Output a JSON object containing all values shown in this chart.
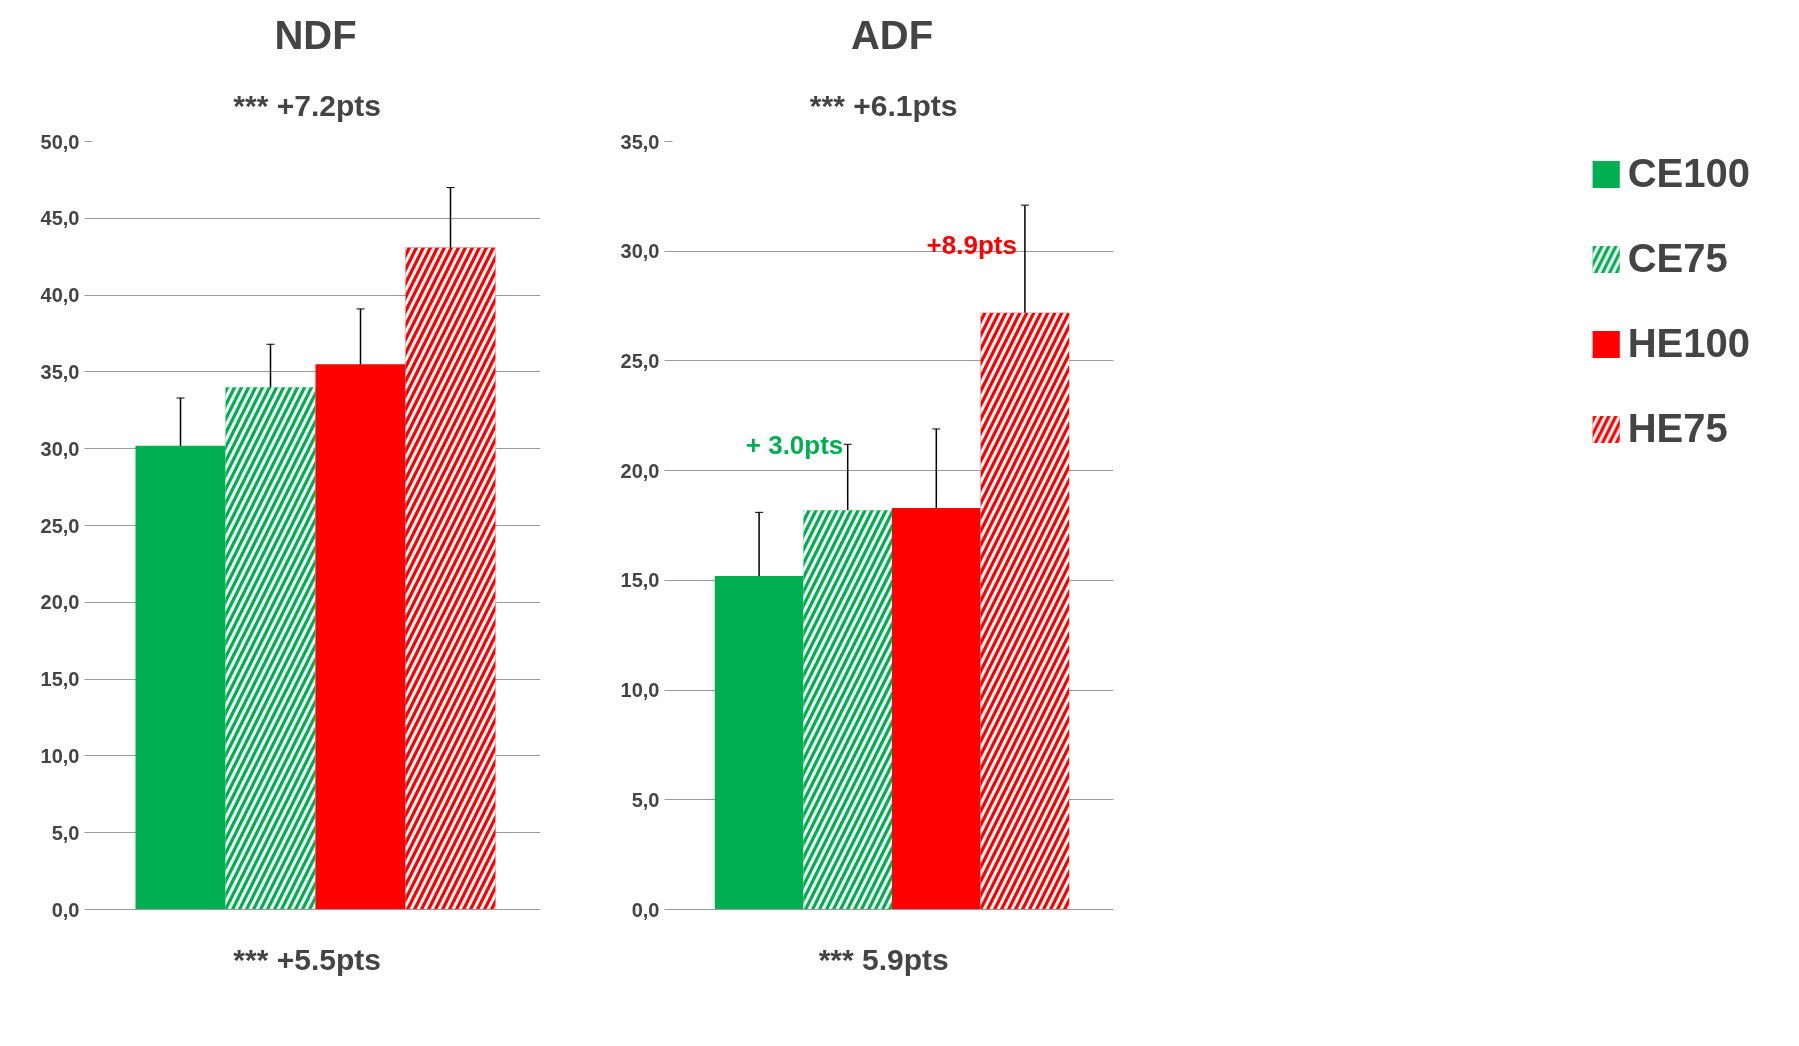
{
  "chart_data": [
    {
      "type": "bar",
      "title": "NDF",
      "categories": [
        null
      ],
      "ylim": [
        0,
        50
      ],
      "yticks": [
        {
          "value": 0,
          "label": "0,0"
        },
        {
          "value": 5,
          "label": "5,0"
        },
        {
          "value": 10,
          "label": "10,0"
        },
        {
          "value": 15,
          "label": "15,0"
        },
        {
          "value": 20,
          "label": "20,0"
        },
        {
          "value": 25,
          "label": "25,0"
        },
        {
          "value": 30,
          "label": "30,0"
        },
        {
          "value": 35,
          "label": "35,0"
        },
        {
          "value": 40,
          "label": "40,0"
        },
        {
          "value": 45,
          "label": "45,0"
        },
        {
          "value": 50,
          "label": "50,0"
        }
      ],
      "grid": "y",
      "legend": false,
      "series": [
        {
          "color": "#00b050",
          "values": [
            30.2
          ],
          "errors": [
            3.1
          ]
        },
        {
          "color": "#00b050",
          "values": [
            34.0
          ],
          "errors": [
            2.8
          ]
        },
        {
          "color": "#ff0000",
          "values": [
            35.5
          ],
          "errors": [
            3.6
          ]
        },
        {
          "color": "#ff0000",
          "values": [
            43.1
          ],
          "errors": [
            3.9
          ]
        }
      ],
      "annotations": [
        "***   +7.2pts",
        "***   +5.5pts"
      ]
    },
    {
      "type": "bar",
      "title": "ADF",
      "categories": [
        null
      ],
      "ylim": [
        0,
        35
      ],
      "yticks": [
        {
          "value": 0,
          "label": "0,0"
        },
        {
          "value": 5,
          "label": "5,0"
        },
        {
          "value": 10,
          "label": "10,0"
        },
        {
          "value": 15,
          "label": "15,0"
        },
        {
          "value": 20,
          "label": "20,0"
        },
        {
          "value": 25,
          "label": "25,0"
        },
        {
          "value": 30,
          "label": "30,0"
        },
        {
          "value": 35,
          "label": "35,0"
        }
      ],
      "grid": "y",
      "legend": "right",
      "series": [
        {
          "name": "CE100",
          "color": "#00b050",
          "values": [
            15.2
          ],
          "errors": [
            2.9
          ]
        },
        {
          "name": "CE75",
          "color": "#00b050",
          "values": [
            18.2
          ],
          "errors": [
            3.0
          ]
        },
        {
          "name": "HE100",
          "color": "#ff0000",
          "values": [
            18.3
          ],
          "errors": [
            3.6
          ]
        },
        {
          "name": "HE75",
          "color": "#ff0000",
          "values": [
            27.2
          ],
          "errors": [
            4.9
          ]
        }
      ],
      "annotations": [
        "***   +6.1pts",
        "+ 3.0pts",
        "+8.9pts",
        "***   5.9pts"
      ]
    }
  ]
}
